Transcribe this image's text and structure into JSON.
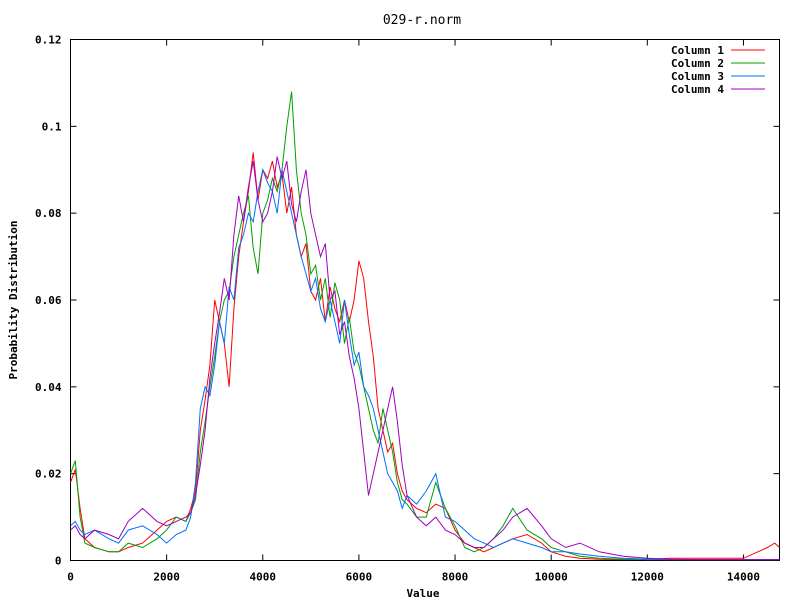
{
  "chart_data": {
    "type": "line",
    "title": "029-r.norm",
    "xlabel": "Value",
    "ylabel": "Probability Distribution",
    "xlim": [
      0,
      14750
    ],
    "ylim": [
      0,
      0.12
    ],
    "xticks": [
      0,
      2000,
      4000,
      6000,
      8000,
      10000,
      12000,
      14000
    ],
    "yticks": [
      0,
      0.02,
      0.04,
      0.06,
      0.08,
      0.1,
      0.12
    ],
    "xtick_labels": [
      "0",
      "2000",
      "4000",
      "6000",
      "8000",
      "10000",
      "12000",
      "14000"
    ],
    "ytick_labels": [
      "0",
      "0.02",
      "0.04",
      "0.06",
      "0.08",
      "0.1",
      "0.12"
    ],
    "grid": false,
    "legend_position": "top-right",
    "series": [
      {
        "name": "Column 1",
        "color": "#ff0000",
        "x": [
          0,
          100,
          200,
          300,
          500,
          800,
          1000,
          1200,
          1500,
          1800,
          2000,
          2200,
          2400,
          2500,
          2600,
          2700,
          2800,
          2900,
          3000,
          3100,
          3200,
          3300,
          3400,
          3500,
          3600,
          3700,
          3800,
          3900,
          4000,
          4100,
          4200,
          4300,
          4400,
          4500,
          4600,
          4700,
          4800,
          4900,
          5000,
          5100,
          5200,
          5300,
          5400,
          5500,
          5600,
          5700,
          5800,
          5900,
          6000,
          6100,
          6200,
          6300,
          6400,
          6500,
          6600,
          6700,
          6800,
          6900,
          7000,
          7200,
          7400,
          7600,
          7800,
          8000,
          8200,
          8400,
          8600,
          8800,
          9000,
          9200,
          9500,
          9800,
          10000,
          10300,
          10600,
          11000,
          11500,
          12000,
          12500,
          13000,
          13500,
          14000,
          14300,
          14500,
          14650,
          14750
        ],
        "values": [
          0.018,
          0.021,
          0.012,
          0.005,
          0.003,
          0.002,
          0.002,
          0.003,
          0.004,
          0.007,
          0.009,
          0.01,
          0.009,
          0.012,
          0.016,
          0.03,
          0.037,
          0.045,
          0.06,
          0.055,
          0.05,
          0.04,
          0.058,
          0.07,
          0.078,
          0.085,
          0.094,
          0.083,
          0.09,
          0.088,
          0.092,
          0.086,
          0.089,
          0.08,
          0.086,
          0.075,
          0.07,
          0.073,
          0.062,
          0.06,
          0.065,
          0.055,
          0.063,
          0.058,
          0.055,
          0.06,
          0.055,
          0.06,
          0.069,
          0.065,
          0.055,
          0.047,
          0.035,
          0.03,
          0.025,
          0.027,
          0.02,
          0.016,
          0.014,
          0.012,
          0.011,
          0.013,
          0.012,
          0.007,
          0.004,
          0.003,
          0.002,
          0.003,
          0.004,
          0.005,
          0.006,
          0.004,
          0.002,
          0.001,
          0.0005,
          0.0003,
          0.0002,
          0.0003,
          0.0005,
          0.0005,
          0.0005,
          0.0005,
          0.002,
          0.003,
          0.004,
          0.003
        ]
      },
      {
        "name": "Column 2",
        "color": "#00a000",
        "x": [
          0,
          100,
          200,
          300,
          500,
          800,
          1000,
          1200,
          1500,
          1800,
          2000,
          2200,
          2400,
          2500,
          2600,
          2700,
          2800,
          2900,
          3000,
          3100,
          3200,
          3300,
          3400,
          3500,
          3600,
          3700,
          3800,
          3900,
          4000,
          4100,
          4200,
          4300,
          4400,
          4500,
          4600,
          4700,
          4800,
          4900,
          5000,
          5100,
          5200,
          5300,
          5400,
          5500,
          5600,
          5700,
          5800,
          5900,
          6000,
          6100,
          6200,
          6300,
          6400,
          6500,
          6600,
          6700,
          6800,
          6900,
          7000,
          7200,
          7400,
          7600,
          7800,
          8000,
          8200,
          8400,
          8600,
          8800,
          9000,
          9200,
          9500,
          9800,
          10000,
          10300,
          10600,
          11000,
          11500,
          12000,
          12500,
          13000,
          13500,
          14000,
          14750
        ],
        "values": [
          0.02,
          0.023,
          0.01,
          0.004,
          0.003,
          0.002,
          0.002,
          0.004,
          0.003,
          0.005,
          0.007,
          0.01,
          0.009,
          0.011,
          0.014,
          0.025,
          0.032,
          0.04,
          0.047,
          0.055,
          0.06,
          0.062,
          0.07,
          0.075,
          0.08,
          0.084,
          0.072,
          0.066,
          0.08,
          0.083,
          0.088,
          0.085,
          0.09,
          0.1,
          0.108,
          0.09,
          0.08,
          0.075,
          0.066,
          0.068,
          0.06,
          0.065,
          0.056,
          0.064,
          0.06,
          0.05,
          0.056,
          0.048,
          0.045,
          0.04,
          0.035,
          0.03,
          0.027,
          0.035,
          0.03,
          0.025,
          0.018,
          0.014,
          0.013,
          0.01,
          0.01,
          0.018,
          0.012,
          0.008,
          0.003,
          0.002,
          0.003,
          0.005,
          0.008,
          0.012,
          0.007,
          0.005,
          0.003,
          0.002,
          0.001,
          0.0005,
          0.0003,
          0.0002,
          0.0002,
          0.0002,
          0.0002,
          0.0002,
          0.0002
        ]
      },
      {
        "name": "Column 3",
        "color": "#0070ff",
        "x": [
          0,
          100,
          200,
          300,
          500,
          800,
          1000,
          1200,
          1500,
          1800,
          2000,
          2200,
          2400,
          2500,
          2600,
          2700,
          2800,
          2900,
          3000,
          3100,
          3200,
          3300,
          3400,
          3500,
          3600,
          3700,
          3800,
          3900,
          4000,
          4100,
          4200,
          4300,
          4400,
          4500,
          4600,
          4700,
          4800,
          4900,
          5000,
          5100,
          5200,
          5300,
          5400,
          5500,
          5600,
          5700,
          5800,
          5900,
          6000,
          6100,
          6200,
          6300,
          6400,
          6500,
          6600,
          6700,
          6800,
          6900,
          7000,
          7200,
          7400,
          7600,
          7800,
          8000,
          8200,
          8400,
          8600,
          8800,
          9000,
          9200,
          9500,
          9800,
          10000,
          10300,
          10600,
          11000,
          11500,
          12000,
          12500,
          13000,
          13500,
          14000,
          14750
        ],
        "values": [
          0.008,
          0.009,
          0.007,
          0.006,
          0.007,
          0.005,
          0.004,
          0.007,
          0.008,
          0.006,
          0.004,
          0.006,
          0.007,
          0.01,
          0.018,
          0.035,
          0.04,
          0.038,
          0.045,
          0.055,
          0.05,
          0.063,
          0.06,
          0.072,
          0.075,
          0.08,
          0.078,
          0.085,
          0.09,
          0.087,
          0.085,
          0.08,
          0.09,
          0.085,
          0.08,
          0.075,
          0.07,
          0.066,
          0.062,
          0.065,
          0.058,
          0.055,
          0.06,
          0.055,
          0.05,
          0.06,
          0.052,
          0.045,
          0.048,
          0.04,
          0.038,
          0.035,
          0.03,
          0.025,
          0.02,
          0.018,
          0.016,
          0.012,
          0.015,
          0.013,
          0.016,
          0.02,
          0.01,
          0.009,
          0.007,
          0.005,
          0.004,
          0.003,
          0.004,
          0.005,
          0.004,
          0.003,
          0.002,
          0.002,
          0.0015,
          0.001,
          0.0005,
          0.0003,
          0.0002,
          0.0002,
          0.0002,
          0.0002,
          0.0002
        ]
      },
      {
        "name": "Column 4",
        "color": "#a000c0",
        "x": [
          0,
          100,
          200,
          300,
          500,
          800,
          1000,
          1200,
          1500,
          1800,
          2000,
          2200,
          2400,
          2500,
          2600,
          2700,
          2800,
          2900,
          3000,
          3100,
          3200,
          3300,
          3400,
          3500,
          3600,
          3700,
          3800,
          3900,
          4000,
          4100,
          4200,
          4300,
          4400,
          4500,
          4600,
          4700,
          4800,
          4900,
          5000,
          5100,
          5200,
          5300,
          5400,
          5500,
          5600,
          5700,
          5800,
          5900,
          6000,
          6100,
          6200,
          6300,
          6400,
          6500,
          6600,
          6700,
          6800,
          6900,
          7000,
          7200,
          7400,
          7600,
          7800,
          8000,
          8200,
          8400,
          8600,
          8800,
          9000,
          9200,
          9500,
          9800,
          10000,
          10300,
          10600,
          11000,
          11500,
          12000,
          12500,
          13000,
          13500,
          14000,
          14750
        ],
        "values": [
          0.007,
          0.008,
          0.006,
          0.005,
          0.007,
          0.006,
          0.005,
          0.009,
          0.012,
          0.009,
          0.008,
          0.009,
          0.01,
          0.011,
          0.015,
          0.022,
          0.03,
          0.042,
          0.05,
          0.057,
          0.065,
          0.06,
          0.075,
          0.084,
          0.078,
          0.086,
          0.092,
          0.083,
          0.078,
          0.08,
          0.085,
          0.093,
          0.088,
          0.092,
          0.082,
          0.078,
          0.085,
          0.09,
          0.08,
          0.075,
          0.07,
          0.073,
          0.06,
          0.062,
          0.052,
          0.055,
          0.047,
          0.042,
          0.035,
          0.025,
          0.015,
          0.02,
          0.025,
          0.03,
          0.035,
          0.04,
          0.032,
          0.022,
          0.015,
          0.01,
          0.008,
          0.01,
          0.007,
          0.006,
          0.004,
          0.003,
          0.003,
          0.005,
          0.007,
          0.01,
          0.012,
          0.008,
          0.005,
          0.003,
          0.004,
          0.002,
          0.001,
          0.0005,
          0.0003,
          0.0002,
          0.0002,
          0.0002,
          0.0002
        ]
      }
    ]
  }
}
